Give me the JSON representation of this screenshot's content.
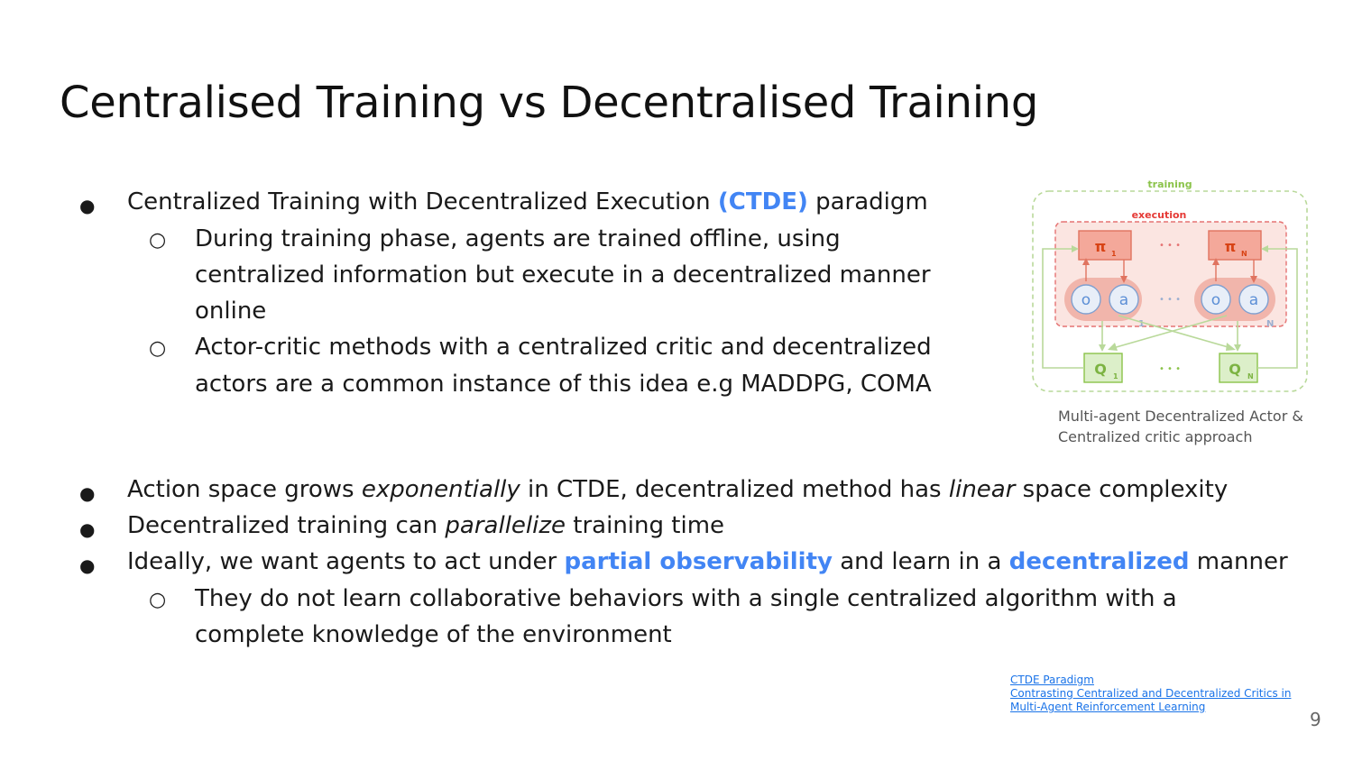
{
  "slide": {
    "title": "Centralised Training vs Decentralised Training",
    "page_number": "9"
  },
  "bullets": {
    "b1_pre": "Centralized Training with Decentralized Execution ",
    "b1_accent": "(CTDE)",
    "b1_post": " paradigm",
    "b1_sub1_l1": "During training phase, agents are trained offline, using",
    "b1_sub1_l2": "centralized information but execute in a decentralized manner",
    "b1_sub1_l3": "online",
    "b1_sub2_l1": "Actor-critic methods with a centralized critic and decentralized",
    "b1_sub2_l2": "actors are a common instance of this idea e.g MADDPG, COMA",
    "b2_pre": "Action space grows ",
    "b2_em1": "exponentially",
    "b2_mid": " in CTDE, decentralized method has ",
    "b2_em2": "linear",
    "b2_post": " space complexity",
    "b3_pre": "Decentralized training can ",
    "b3_em": "parallelize",
    "b3_post": " training time",
    "b4_pre": "Ideally, we want agents to act under ",
    "b4_accent1": "partial observability",
    "b4_mid": " and learn in a ",
    "b4_accent2": "decentralized",
    "b4_post": " manner",
    "b4_sub1_l1": "They do not learn collaborative behaviors with a single centralized algorithm with a",
    "b4_sub1_l2": "complete knowledge of the environment"
  },
  "figure": {
    "training_label": "training",
    "execution_label": "execution",
    "pi_symbol": "π",
    "sub_1": "1",
    "sub_n": "N",
    "ellipsis": "• • •",
    "obs_label": "o",
    "act_label": "a",
    "q_label": "Q",
    "caption": "Multi-agent Decentralized Actor & Centralized critic approach",
    "colors": {
      "training": "#8bc34a",
      "execution": "#e53935",
      "obs": "#5c8fd6"
    }
  },
  "references": {
    "ref1": "CTDE Paradigm",
    "ref2_l1": "Contrasting Centralized and Decentralized Critics in",
    "ref2_l2": "Multi-Agent Reinforcement Learning"
  }
}
